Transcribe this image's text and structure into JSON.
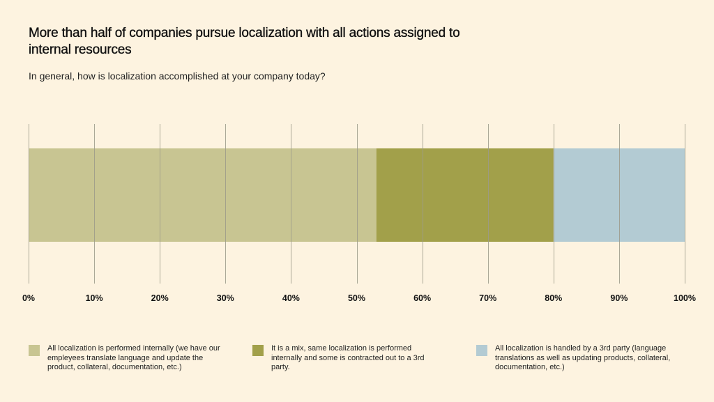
{
  "chart_data": {
    "type": "bar",
    "orientation": "horizontal-stacked-100",
    "title": "More than half of companies pursue localization with all actions assigned to internal resources",
    "subtitle": "In general, how is localization accomplished at your company today?",
    "xlabel": "",
    "ylabel": "",
    "xlim": [
      0,
      100
    ],
    "grid": true,
    "ticks": [
      "0%",
      "10%",
      "20%",
      "30%",
      "40%",
      "50%",
      "60%",
      "70%",
      "80%",
      "90%",
      "100%"
    ],
    "tick_values": [
      0,
      10,
      20,
      30,
      40,
      50,
      60,
      70,
      80,
      90,
      100
    ],
    "legend_position": "bottom",
    "series": [
      {
        "name": "All localization is performed internally (we have our empleyees translate language and update the product, collateral, documentation, etc.)",
        "value": 53,
        "color": "#c8c592"
      },
      {
        "name": "It is a mix, same localization is performed internally and some is contracted out to a 3rd party.",
        "value": 27,
        "color": "#a2a04a"
      },
      {
        "name": "All localization is handled by a 3rd party (language translations as well as updating products, collateral, documentation, etc.)",
        "value": 20,
        "color": "#b3cbd3"
      }
    ]
  },
  "colors": {
    "background": "#fdf3e0",
    "gridline": "#9c9a8a"
  }
}
